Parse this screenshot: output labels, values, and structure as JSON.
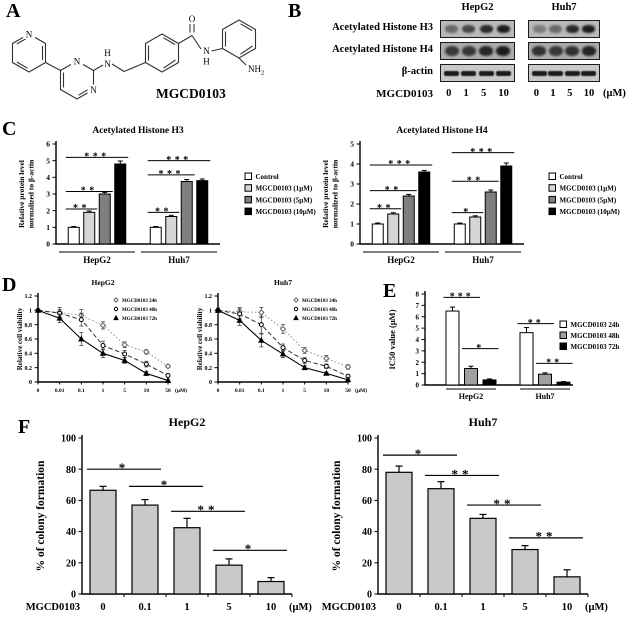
{
  "panels": {
    "A": {
      "letter": "A",
      "molecule_name": "MGCD0103",
      "atoms": {
        "pyridine_n": "N",
        "pyrimidine_n1": "N",
        "pyrimidine_n3": "N",
        "linker_h": "H",
        "linker_n": "N",
        "carbonyl_o": "O",
        "amide_n": "N",
        "amide_h": "H",
        "amine": "NH",
        "amine_sub": "2"
      }
    },
    "B": {
      "letter": "B",
      "col_headers": [
        "HepG2",
        "Huh7"
      ],
      "x_label": "MGCD0103",
      "doses": [
        "0",
        "1",
        "5",
        "10"
      ],
      "unit": "(μM)",
      "blots": [
        {
          "label": "Acetylated Histone H3",
          "bg": "#b9b9b9",
          "band_h": 8,
          "band_w": 13,
          "bands": [
            [
              0.5,
              0.72,
              0.92,
              1
            ],
            [
              0.38,
              0.5,
              0.92,
              1
            ]
          ]
        },
        {
          "label": "Acetylated Histone H4",
          "bg": "#ababab",
          "band_h": 10,
          "band_w": 14,
          "bands": [
            [
              0.8,
              0.8,
              0.92,
              1
            ],
            [
              0.85,
              0.8,
              0.85,
              0.95
            ]
          ]
        },
        {
          "label": "β-actin",
          "bg": "#c8c8c8",
          "band_h": 5,
          "band_w": 15,
          "bands": [
            [
              1,
              1,
              1,
              1
            ],
            [
              1,
              1,
              1,
              1
            ]
          ]
        }
      ]
    },
    "C": {
      "letter": "C"
    },
    "D": {
      "letter": "D"
    },
    "E": {
      "letter": "E"
    },
    "F": {
      "letter": "F"
    }
  },
  "chart_data": [
    {
      "id": "c_h3",
      "type": "bar",
      "title": "Acetylated Histone H3",
      "ylabel": [
        "Relative protein level",
        "normalized to β-actin"
      ],
      "ylim": [
        0,
        6
      ],
      "ytick_step": 1,
      "groups": [
        "HepG2",
        "Huh7"
      ],
      "series": [
        {
          "name": "Control",
          "fill": "#ffffff",
          "values": [
            1.0,
            1.0
          ],
          "errors": [
            0.05,
            0.05
          ]
        },
        {
          "name": "MGCD0103 (1μM)",
          "fill": "#d6d6d6",
          "values": [
            1.9,
            1.65
          ],
          "errors": [
            0.08,
            0.07
          ]
        },
        {
          "name": "MGCD0103 (5μM)",
          "fill": "#7f7f7f",
          "values": [
            3.0,
            3.75
          ],
          "errors": [
            0.1,
            0.12
          ]
        },
        {
          "name": "MGCD0103 (10μM)",
          "fill": "#000000",
          "values": [
            4.8,
            3.8
          ],
          "errors": [
            0.18,
            0.1
          ]
        }
      ],
      "sig": [
        {
          "group": 0,
          "from": 0,
          "to": 1,
          "y": 2.1,
          "stars": "**"
        },
        {
          "group": 0,
          "from": 0,
          "to": 2,
          "y": 3.15,
          "stars": "**"
        },
        {
          "group": 0,
          "from": 0,
          "to": 3,
          "y": 5.2,
          "stars": "***"
        },
        {
          "group": 1,
          "from": 0,
          "to": 1,
          "y": 1.9,
          "stars": "**"
        },
        {
          "group": 1,
          "from": 0,
          "to": 2,
          "y": 4.15,
          "stars": "***"
        },
        {
          "group": 1,
          "from": 0,
          "to": 3,
          "y": 5.0,
          "stars": "***"
        }
      ],
      "legend": true
    },
    {
      "id": "c_h4",
      "type": "bar",
      "title": "Acetylated Histone H4",
      "ylabel": [
        "Relative protein level",
        "normalized to β-actin"
      ],
      "ylim": [
        0,
        5
      ],
      "ytick_step": 1,
      "groups": [
        "HepG2",
        "Huh7"
      ],
      "series": [
        {
          "name": "Control",
          "fill": "#ffffff",
          "values": [
            1.0,
            1.0
          ],
          "errors": [
            0.05,
            0.05
          ]
        },
        {
          "name": "MGCD0103 (1μM)",
          "fill": "#d6d6d6",
          "values": [
            1.5,
            1.35
          ],
          "errors": [
            0.06,
            0.06
          ]
        },
        {
          "name": "MGCD0103 (5μM)",
          "fill": "#7f7f7f",
          "values": [
            2.4,
            2.6
          ],
          "errors": [
            0.08,
            0.1
          ]
        },
        {
          "name": "MGCD0103 (10μM)",
          "fill": "#000000",
          "values": [
            3.6,
            3.9
          ],
          "errors": [
            0.08,
            0.15
          ]
        }
      ],
      "sig": [
        {
          "group": 0,
          "from": 0,
          "to": 1,
          "y": 1.76,
          "stars": "**"
        },
        {
          "group": 0,
          "from": 0,
          "to": 2,
          "y": 2.67,
          "stars": "**"
        },
        {
          "group": 0,
          "from": 0,
          "to": 3,
          "y": 3.95,
          "stars": "***"
        },
        {
          "group": 1,
          "from": 0,
          "to": 1,
          "y": 1.57,
          "stars": "*"
        },
        {
          "group": 1,
          "from": 0,
          "to": 2,
          "y": 3.14,
          "stars": "**"
        },
        {
          "group": 1,
          "from": 0,
          "to": 3,
          "y": 4.57,
          "stars": "***"
        }
      ],
      "legend": true
    },
    {
      "id": "d_hepg2",
      "type": "line",
      "title": "HepG2",
      "ylabel": "Relative cell viability",
      "ylim": [
        0,
        1.2
      ],
      "ytick_step": 0.2,
      "x_categories": [
        "0",
        "0.01",
        "0.1",
        "1",
        "5",
        "10",
        "50"
      ],
      "x_unit": "(μM)",
      "series": [
        {
          "name": "MGCD0103 24h",
          "marker": "diamond",
          "dash": "dotted",
          "values": [
            1.0,
            0.97,
            0.93,
            0.79,
            0.52,
            0.42,
            0.22
          ],
          "errors": [
            0.02,
            0.07,
            0.08,
            0.05,
            0.04,
            0.03,
            0.02
          ]
        },
        {
          "name": "MGCD0103 48h",
          "marker": "circle",
          "dash": "dashed",
          "values": [
            1.0,
            0.96,
            0.87,
            0.51,
            0.39,
            0.25,
            0.09
          ],
          "errors": [
            0.02,
            0.05,
            0.09,
            0.06,
            0.05,
            0.04,
            0.02
          ]
        },
        {
          "name": "MGCD0103 72h",
          "marker": "triangle",
          "dash": "solid",
          "values": [
            1.0,
            0.89,
            0.6,
            0.4,
            0.3,
            0.12,
            0.02
          ],
          "errors": [
            0.02,
            0.06,
            0.09,
            0.06,
            0.04,
            0.03,
            0.01
          ]
        }
      ]
    },
    {
      "id": "d_huh7",
      "type": "line",
      "title": "Huh7",
      "ylabel": "Relative cell viability",
      "ylim": [
        0,
        1.2
      ],
      "ytick_step": 0.2,
      "x_categories": [
        "0",
        "0.01",
        "0.1",
        "1",
        "5",
        "10",
        "50"
      ],
      "x_unit": "(μM)",
      "series": [
        {
          "name": "MGCD0103 24h",
          "marker": "diamond",
          "dash": "dotted",
          "values": [
            1.0,
            0.98,
            0.97,
            0.74,
            0.44,
            0.33,
            0.21
          ],
          "errors": [
            0.03,
            0.06,
            0.07,
            0.06,
            0.04,
            0.04,
            0.03
          ]
        },
        {
          "name": "MGCD0103 48h",
          "marker": "circle",
          "dash": "dashed",
          "values": [
            1.0,
            0.95,
            0.8,
            0.48,
            0.3,
            0.22,
            0.08
          ],
          "errors": [
            0.03,
            0.07,
            0.12,
            0.05,
            0.04,
            0.03,
            0.02
          ]
        },
        {
          "name": "MGCD0103 72h",
          "marker": "triangle",
          "dash": "solid",
          "values": [
            1.0,
            0.86,
            0.58,
            0.39,
            0.2,
            0.12,
            0.03
          ],
          "errors": [
            0.03,
            0.07,
            0.09,
            0.05,
            0.03,
            0.02,
            0.01
          ]
        }
      ]
    },
    {
      "id": "e_ic50",
      "type": "bar",
      "title": "",
      "ylabel": "IC50 value (μM)",
      "ylim": [
        0,
        8
      ],
      "ytick_step": 1,
      "groups": [
        "HepG2",
        "Huh7"
      ],
      "series": [
        {
          "name": "MGCD0103 24h",
          "fill": "#ffffff",
          "values": [
            6.5,
            4.6
          ],
          "errors": [
            0.35,
            0.45
          ]
        },
        {
          "name": "MGCD0103 48h",
          "fill": "#a0a0a0",
          "values": [
            1.45,
            0.95
          ],
          "errors": [
            0.2,
            0.12
          ]
        },
        {
          "name": "MGCD0103 72h",
          "fill": "#000000",
          "values": [
            0.45,
            0.25
          ],
          "errors": [
            0.08,
            0.05
          ]
        }
      ],
      "sig": [
        {
          "group": 0,
          "from": 0,
          "to": 1,
          "y": 7.7,
          "stars": "***"
        },
        {
          "group": 0,
          "from": 1,
          "to": 2,
          "y": 3.2,
          "stars": "*"
        },
        {
          "group": 1,
          "from": 0,
          "to": 1,
          "y": 5.4,
          "stars": "**"
        },
        {
          "group": 1,
          "from": 1,
          "to": 2,
          "y": 1.9,
          "stars": "**"
        }
      ],
      "legend": true
    },
    {
      "id": "f_hepg2",
      "type": "bar",
      "title": "HepG2",
      "ylabel": "% of colony formation",
      "ylim": [
        0,
        100
      ],
      "ytick_step": 20,
      "x_label": "MGCD0103",
      "x_unit": "(μM)",
      "categories": [
        "0",
        "0.1",
        "1",
        "5",
        "10"
      ],
      "fill": "#c9c9c9",
      "values": [
        66.5,
        57,
        42.5,
        18.5,
        8
      ],
      "errors": [
        2.5,
        3.5,
        6,
        4,
        2.5
      ],
      "sig": [
        {
          "from": 0,
          "to": 1,
          "y": 80,
          "stars": "*"
        },
        {
          "from": 1,
          "to": 2,
          "y": 69,
          "stars": "*"
        },
        {
          "from": 2,
          "to": 3,
          "y": 53,
          "stars": "**"
        },
        {
          "from": 3,
          "to": 4,
          "y": 28,
          "stars": "*"
        }
      ]
    },
    {
      "id": "f_huh7",
      "type": "bar",
      "title": "Huh7",
      "ylabel": "% of colony formation",
      "ylim": [
        0,
        100
      ],
      "ytick_step": 20,
      "x_label": "MGCD0103",
      "x_unit": "(μM)",
      "categories": [
        "0",
        "0.1",
        "1",
        "5",
        "10"
      ],
      "fill": "#c9c9c9",
      "values": [
        78,
        67.5,
        48.5,
        28.5,
        11
      ],
      "errors": [
        4,
        4.5,
        2.5,
        2.5,
        4.5
      ],
      "sig": [
        {
          "from": 0,
          "to": 1,
          "y": 89,
          "stars": "*"
        },
        {
          "from": 1,
          "to": 2,
          "y": 76,
          "stars": "**"
        },
        {
          "from": 2,
          "to": 3,
          "y": 57,
          "stars": "**"
        },
        {
          "from": 3,
          "to": 4,
          "y": 36,
          "stars": "**"
        }
      ]
    }
  ]
}
